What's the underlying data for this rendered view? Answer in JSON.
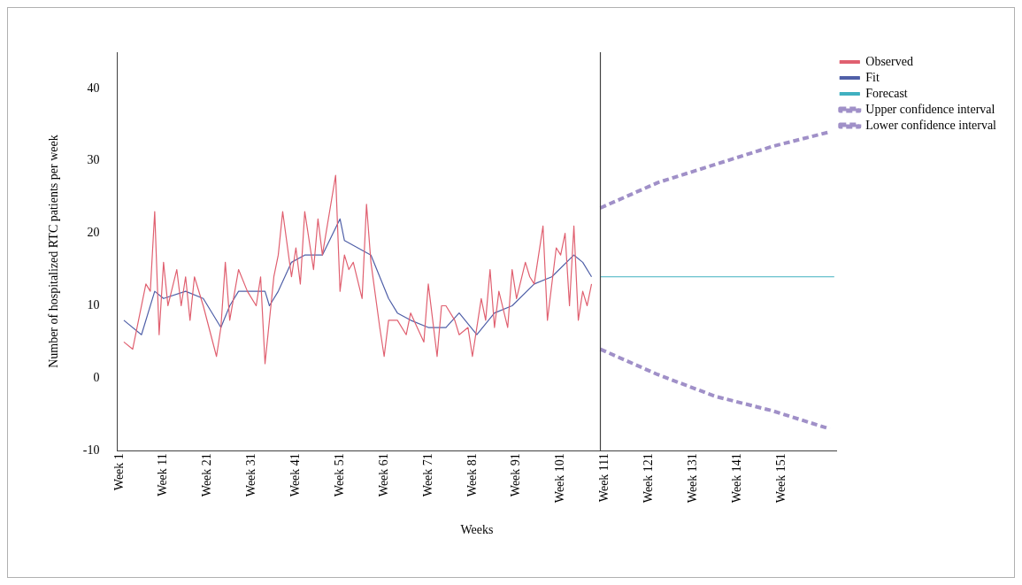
{
  "chart_data": {
    "type": "line",
    "xlabel": "Weeks",
    "ylabel": "Number of hospitalized RTC patients per week",
    "categories": [
      "Week 1",
      null,
      null,
      null,
      null,
      null,
      null,
      null,
      null,
      null,
      "Week 11",
      null,
      null,
      null,
      null,
      null,
      null,
      null,
      null,
      null,
      "Week 21",
      null,
      null,
      null,
      null,
      null,
      null,
      null,
      null,
      null,
      "Week 31",
      null,
      null,
      null,
      null,
      null,
      null,
      null,
      null,
      null,
      "Week 41",
      null,
      null,
      null,
      null,
      null,
      null,
      null,
      null,
      null,
      "Week 51",
      null,
      null,
      null,
      null,
      null,
      null,
      null,
      null,
      null,
      "Week 61",
      null,
      null,
      null,
      null,
      null,
      null,
      null,
      null,
      null,
      "Week 71",
      null,
      null,
      null,
      null,
      null,
      null,
      null,
      null,
      null,
      "Week 81",
      null,
      null,
      null,
      null,
      null,
      null,
      null,
      null,
      null,
      "Week 91",
      null,
      null,
      null,
      null,
      null,
      null,
      null,
      null,
      null,
      "Week 101",
      null,
      null,
      null,
      null,
      null,
      null,
      null,
      null,
      null,
      "Week 111",
      null,
      null,
      null,
      null,
      null,
      null,
      null,
      null,
      null,
      "Week 121",
      null,
      null,
      null,
      null,
      null,
      null,
      null,
      null,
      null,
      "Week 131",
      null,
      null,
      null,
      null,
      null,
      null,
      null,
      null,
      null,
      "Week 141",
      null,
      null,
      null,
      null,
      null,
      null,
      null,
      null,
      null,
      "Week 151",
      null,
      null,
      null,
      null,
      null,
      null,
      null,
      null,
      null,
      null,
      null,
      null
    ],
    "ylim": [
      -10,
      45
    ],
    "yticks": [
      -10,
      0,
      10,
      20,
      30,
      40
    ],
    "grid": false,
    "legend": "right",
    "marker": "none",
    "series": [
      {
        "name": "Observed",
        "color": "#e06070",
        "line_style": "solid",
        "values": [
          null,
          5,
          null,
          4,
          null,
          null,
          13,
          12,
          23,
          6,
          16,
          10,
          null,
          15,
          10,
          14,
          8,
          14,
          null,
          10,
          null,
          null,
          3,
          7,
          16,
          8,
          null,
          15,
          null,
          12,
          null,
          10,
          14,
          2,
          null,
          14,
          17,
          23,
          null,
          14,
          18,
          13,
          23,
          null,
          15,
          22,
          17,
          null,
          null,
          28,
          12,
          17,
          15,
          16,
          null,
          11,
          24,
          16,
          null,
          7,
          3,
          8,
          null,
          8,
          null,
          6,
          9,
          null,
          null,
          5,
          13,
          null,
          3,
          10,
          10,
          null,
          8,
          6,
          null,
          7,
          3,
          null,
          11,
          8,
          15,
          7,
          12,
          null,
          7,
          15,
          11,
          null,
          16,
          14,
          13,
          null,
          21,
          8,
          null,
          18,
          17,
          20,
          10,
          21,
          8,
          12,
          10,
          13,
          null,
          null,
          null,
          null,
          null,
          null,
          null,
          null,
          null,
          null,
          null,
          null,
          null,
          null,
          null,
          null,
          null,
          null,
          null,
          null,
          null,
          null,
          null,
          null,
          null,
          null,
          null,
          null,
          null,
          null,
          null,
          null,
          null,
          null,
          null,
          null,
          null,
          null,
          null,
          null,
          null,
          null,
          null,
          null,
          null,
          null,
          null,
          null,
          null,
          null,
          null,
          null,
          null,
          null,
          null
        ]
      },
      {
        "name": "Fit",
        "color": "#5060a8",
        "line_style": "solid",
        "values": [
          null,
          8,
          null,
          null,
          null,
          6,
          null,
          null,
          12,
          null,
          11,
          null,
          null,
          null,
          null,
          12,
          null,
          null,
          null,
          11,
          null,
          null,
          null,
          7,
          null,
          10,
          null,
          12,
          null,
          null,
          12,
          null,
          null,
          12,
          10,
          null,
          12,
          null,
          null,
          16,
          null,
          null,
          17,
          null,
          null,
          null,
          17,
          null,
          null,
          null,
          22,
          19,
          null,
          null,
          18,
          null,
          null,
          17,
          null,
          null,
          null,
          11,
          null,
          9,
          null,
          null,
          8,
          null,
          null,
          null,
          7,
          null,
          null,
          null,
          7,
          null,
          null,
          9,
          null,
          null,
          null,
          6,
          null,
          null,
          null,
          9,
          null,
          null,
          null,
          10,
          null,
          null,
          null,
          null,
          13,
          null,
          null,
          null,
          14,
          null,
          null,
          null,
          null,
          17,
          null,
          16,
          null,
          14,
          null,
          null,
          null,
          null,
          null,
          null,
          null,
          null,
          null,
          null,
          null,
          null,
          null,
          null,
          null,
          null,
          null,
          null,
          null,
          null,
          null,
          null,
          null,
          null,
          null,
          null,
          null,
          null,
          null,
          null,
          null,
          null,
          null,
          null,
          null,
          null,
          null,
          null,
          null,
          null,
          null,
          null,
          null,
          null,
          null,
          null,
          null,
          null,
          null,
          null,
          null,
          null,
          null,
          null,
          null
        ]
      },
      {
        "name": "Forecast",
        "color": "#40b0c0",
        "line_style": "solid",
        "values": [
          null,
          null,
          null,
          null,
          null,
          null,
          null,
          null,
          null,
          null,
          null,
          null,
          null,
          null,
          null,
          null,
          null,
          null,
          null,
          null,
          null,
          null,
          null,
          null,
          null,
          null,
          null,
          null,
          null,
          null,
          null,
          null,
          null,
          null,
          null,
          null,
          null,
          null,
          null,
          null,
          null,
          null,
          null,
          null,
          null,
          null,
          null,
          null,
          null,
          null,
          null,
          null,
          null,
          null,
          null,
          null,
          null,
          null,
          null,
          null,
          null,
          null,
          null,
          null,
          null,
          null,
          null,
          null,
          null,
          null,
          null,
          null,
          null,
          null,
          null,
          null,
          null,
          null,
          null,
          null,
          null,
          null,
          null,
          null,
          null,
          null,
          null,
          null,
          null,
          null,
          null,
          null,
          null,
          null,
          null,
          null,
          null,
          null,
          null,
          null,
          null,
          null,
          null,
          null,
          null,
          null,
          null,
          null,
          null,
          14,
          null,
          null,
          null,
          null,
          null,
          null,
          null,
          null,
          null,
          null,
          null,
          null,
          null,
          null,
          null,
          null,
          null,
          null,
          null,
          null,
          null,
          null,
          null,
          null,
          null,
          null,
          null,
          null,
          null,
          null,
          null,
          null,
          null,
          null,
          null,
          null,
          null,
          null,
          null,
          null,
          null,
          null,
          null,
          null,
          null,
          null,
          null,
          null,
          null,
          null,
          null,
          null,
          14
        ]
      },
      {
        "name": "Upper confidence interval",
        "color": "#a090c8",
        "line_style": "dashed",
        "values": [
          null,
          null,
          null,
          null,
          null,
          null,
          null,
          null,
          null,
          null,
          null,
          null,
          null,
          null,
          null,
          null,
          null,
          null,
          null,
          null,
          null,
          null,
          null,
          null,
          null,
          null,
          null,
          null,
          null,
          null,
          null,
          null,
          null,
          null,
          null,
          null,
          null,
          null,
          null,
          null,
          null,
          null,
          null,
          null,
          null,
          null,
          null,
          null,
          null,
          null,
          null,
          null,
          null,
          null,
          null,
          null,
          null,
          null,
          null,
          null,
          null,
          null,
          null,
          null,
          null,
          null,
          null,
          null,
          null,
          null,
          null,
          null,
          null,
          null,
          null,
          null,
          null,
          null,
          null,
          null,
          null,
          null,
          null,
          null,
          null,
          null,
          null,
          null,
          null,
          null,
          null,
          null,
          null,
          null,
          null,
          null,
          null,
          null,
          null,
          null,
          null,
          null,
          null,
          null,
          null,
          null,
          null,
          null,
          null,
          23.5,
          null,
          null,
          null,
          null,
          null,
          null,
          null,
          null,
          null,
          null,
          null,
          null,
          27,
          null,
          null,
          null,
          null,
          null,
          null,
          null,
          null,
          null,
          null,
          null,
          null,
          29.5,
          null,
          null,
          null,
          null,
          null,
          null,
          null,
          null,
          null,
          null,
          null,
          null,
          32,
          null,
          null,
          null,
          null,
          null,
          null,
          null,
          null,
          null,
          null,
          null,
          null,
          34,
          null
        ]
      },
      {
        "name": "Lower confidence interval",
        "color": "#a090c8",
        "line_style": "dashed",
        "values": [
          null,
          null,
          null,
          null,
          null,
          null,
          null,
          null,
          null,
          null,
          null,
          null,
          null,
          null,
          null,
          null,
          null,
          null,
          null,
          null,
          null,
          null,
          null,
          null,
          null,
          null,
          null,
          null,
          null,
          null,
          null,
          null,
          null,
          null,
          null,
          null,
          null,
          null,
          null,
          null,
          null,
          null,
          null,
          null,
          null,
          null,
          null,
          null,
          null,
          null,
          null,
          null,
          null,
          null,
          null,
          null,
          null,
          null,
          null,
          null,
          null,
          null,
          null,
          null,
          null,
          null,
          null,
          null,
          null,
          null,
          null,
          null,
          null,
          null,
          null,
          null,
          null,
          null,
          null,
          null,
          null,
          null,
          null,
          null,
          null,
          null,
          null,
          null,
          null,
          null,
          null,
          null,
          null,
          null,
          null,
          null,
          null,
          null,
          null,
          null,
          null,
          null,
          null,
          null,
          null,
          null,
          null,
          null,
          null,
          4,
          null,
          null,
          null,
          null,
          null,
          null,
          null,
          null,
          null,
          null,
          null,
          null,
          0.5,
          null,
          null,
          null,
          null,
          null,
          null,
          null,
          null,
          null,
          null,
          null,
          null,
          -2.5,
          null,
          null,
          null,
          null,
          null,
          null,
          null,
          null,
          null,
          null,
          null,
          null,
          -4.5,
          null,
          null,
          null,
          null,
          null,
          null,
          null,
          null,
          null,
          null,
          null,
          null,
          -7,
          null
        ]
      }
    ]
  }
}
